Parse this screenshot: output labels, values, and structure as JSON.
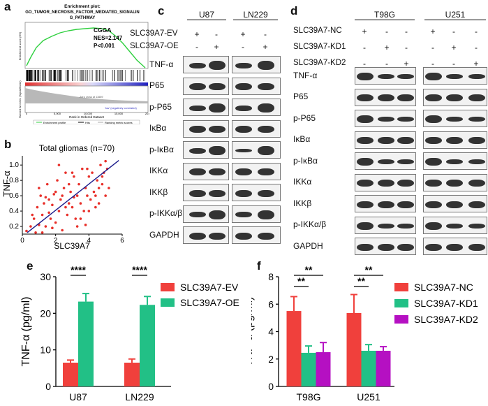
{
  "panels": {
    "a": "a",
    "b": "b",
    "c": "c",
    "d": "d",
    "e": "e",
    "f": "f"
  },
  "gsea": {
    "title": "Enrichment plot:",
    "subtitle_line1": "GO_TUMOR_NECROSIS_FACTOR_MEDIATED_SIGNALIN",
    "subtitle_line2": "G_PATHWAY",
    "dataset": "CGGA",
    "nes": "NES=2.147",
    "p": "P<0.001",
    "ylabel_top": "Enrichment score (ES)",
    "ylabel_bottom": "Ranked list metric (Signal2Noise)",
    "xlabel": "Rank in Ordered Dataset",
    "zero_cross": "Zero cross at 11669",
    "neg_corr": "'low' (negatively correlated)",
    "xticks": [
      "0",
      "5,000",
      "10,000",
      "15,000",
      "20,000"
    ],
    "legend": [
      "Enrichment profile",
      "Hits",
      "Ranking metric scores"
    ]
  },
  "scatter": {
    "title": "Total gliomas (n=70)",
    "xlabel": "SLC39A7",
    "ylabel": "TNF-α",
    "xticks": [
      "0",
      "2",
      "4",
      "6"
    ],
    "yticks": [
      "0.2",
      "0.4",
      "0.6",
      "0.8",
      "1.0"
    ],
    "xlim": [
      0,
      6
    ],
    "ylim": [
      0.1,
      1.12
    ],
    "fit": [
      [
        0.3,
        0.12
      ],
      [
        5.8,
        1.06
      ]
    ],
    "points": [
      [
        0.25,
        0.14
      ],
      [
        0.5,
        0.2
      ],
      [
        0.7,
        0.3
      ],
      [
        0.9,
        0.45
      ],
      [
        1.0,
        0.22
      ],
      [
        1.1,
        0.6
      ],
      [
        1.2,
        0.35
      ],
      [
        1.3,
        0.5
      ],
      [
        1.4,
        0.2
      ],
      [
        1.5,
        0.75
      ],
      [
        1.6,
        0.55
      ],
      [
        1.7,
        0.3
      ],
      [
        1.8,
        0.48
      ],
      [
        1.9,
        0.62
      ],
      [
        2.0,
        0.25
      ],
      [
        2.1,
        0.8
      ],
      [
        2.2,
        0.4
      ],
      [
        2.3,
        0.55
      ],
      [
        2.4,
        0.15
      ],
      [
        2.5,
        0.7
      ],
      [
        2.6,
        0.9
      ],
      [
        2.7,
        0.35
      ],
      [
        2.8,
        0.5
      ],
      [
        2.9,
        0.65
      ],
      [
        3.0,
        0.45
      ],
      [
        3.1,
        0.85
      ],
      [
        3.2,
        0.3
      ],
      [
        3.3,
        0.6
      ],
      [
        3.4,
        0.75
      ],
      [
        3.5,
        0.5
      ],
      [
        3.6,
        0.95
      ],
      [
        3.7,
        0.4
      ],
      [
        3.8,
        0.7
      ],
      [
        3.9,
        0.6
      ],
      [
        4.0,
        0.85
      ],
      [
        4.1,
        0.55
      ],
      [
        4.2,
        0.9
      ],
      [
        4.3,
        0.65
      ],
      [
        4.4,
        0.45
      ],
      [
        4.5,
        0.8
      ],
      [
        4.6,
        0.7
      ],
      [
        4.7,
        1.0
      ],
      [
        4.8,
        0.75
      ],
      [
        4.9,
        0.9
      ],
      [
        5.0,
        0.6
      ],
      [
        5.1,
        0.95
      ],
      [
        1.2,
        0.12
      ],
      [
        1.8,
        0.18
      ],
      [
        2.4,
        0.6
      ],
      [
        3.0,
        0.9
      ],
      [
        2.2,
        1.0
      ],
      [
        1.0,
        0.7
      ],
      [
        0.8,
        0.12
      ],
      [
        3.5,
        0.3
      ],
      [
        4.0,
        0.4
      ],
      [
        2.6,
        0.45
      ],
      [
        1.6,
        0.38
      ],
      [
        3.8,
        0.22
      ],
      [
        4.8,
        0.85
      ],
      [
        5.2,
        0.7
      ],
      [
        0.6,
        0.35
      ],
      [
        2.0,
        0.65
      ],
      [
        3.3,
        0.2
      ],
      [
        4.4,
        0.6
      ],
      [
        2.8,
        0.75
      ],
      [
        1.4,
        0.58
      ],
      [
        3.9,
        0.95
      ],
      [
        4.6,
        0.5
      ],
      [
        5.0,
        1.05
      ],
      [
        3.1,
        0.58
      ]
    ]
  },
  "blot_c": {
    "cell_lines": [
      "U87",
      "LN229"
    ],
    "conditions": [
      {
        "name": "SLC39A7-EV",
        "signs": [
          "+",
          "-",
          "+",
          "-"
        ]
      },
      {
        "name": "SLC39A7-OE",
        "signs": [
          "-",
          "+",
          "-",
          "+"
        ]
      }
    ],
    "proteins": [
      "TNF-α",
      "P65",
      "p-P65",
      "IκBα",
      "p-IκBα",
      "IKKα",
      "IKKβ",
      "p-IKKα/β",
      "GAPDH"
    ]
  },
  "blot_d": {
    "cell_lines": [
      "T98G",
      "U251"
    ],
    "conditions": [
      {
        "name": "SLC39A7-NC",
        "signs": [
          "+",
          "-",
          "-",
          "+",
          "-",
          "-"
        ]
      },
      {
        "name": "SLC39A7-KD1",
        "signs": [
          "-",
          "+",
          "-",
          "-",
          "+",
          "-"
        ]
      },
      {
        "name": "SLC39A7-KD2",
        "signs": [
          "-",
          "-",
          "+",
          "-",
          "-",
          "+"
        ]
      }
    ],
    "proteins": [
      "TNF-α",
      "P65",
      "p-P65",
      "IκBα",
      "p-IκBα",
      "IKKα",
      "IKKβ",
      "p-IKKα/β",
      "GAPDH"
    ]
  },
  "chart_data": [
    {
      "type": "bar",
      "panel": "e",
      "categories": [
        "U87",
        "LN229"
      ],
      "series": [
        {
          "name": "SLC39A7-EV",
          "color": "#f0403c",
          "values": [
            6.5,
            6.5
          ],
          "errors": [
            0.7,
            1.0
          ]
        },
        {
          "name": "SLC39A7-OE",
          "color": "#22c086",
          "values": [
            23.2,
            22.3
          ],
          "errors": [
            2.2,
            2.3
          ]
        }
      ],
      "ylabel": "TNF-α (pg/ml)",
      "ylim": [
        0,
        30
      ],
      "yticks": [
        "0",
        "10",
        "20",
        "30"
      ],
      "significance": [
        "****",
        "****"
      ],
      "legend_position": "top-right"
    },
    {
      "type": "bar",
      "panel": "f",
      "categories": [
        "T98G",
        "U251"
      ],
      "series": [
        {
          "name": "SLC39A7-NC",
          "color": "#f0403c",
          "values": [
            5.5,
            5.35
          ],
          "errors": [
            1.05,
            1.35
          ]
        },
        {
          "name": "SLC39A7-KD1",
          "color": "#22c086",
          "values": [
            2.45,
            2.6
          ],
          "errors": [
            0.5,
            0.45
          ]
        },
        {
          "name": "SLC39A7-KD2",
          "color": "#b510c2",
          "values": [
            2.5,
            2.6
          ],
          "errors": [
            0.7,
            0.3
          ]
        }
      ],
      "ylabel": "TNF-α (pg/ml)",
      "ylim": [
        0,
        8
      ],
      "yticks": [
        "0",
        "2",
        "4",
        "6",
        "8"
      ],
      "significance": [
        "**",
        "**",
        "**",
        "**"
      ],
      "legend_position": "top-right"
    }
  ]
}
